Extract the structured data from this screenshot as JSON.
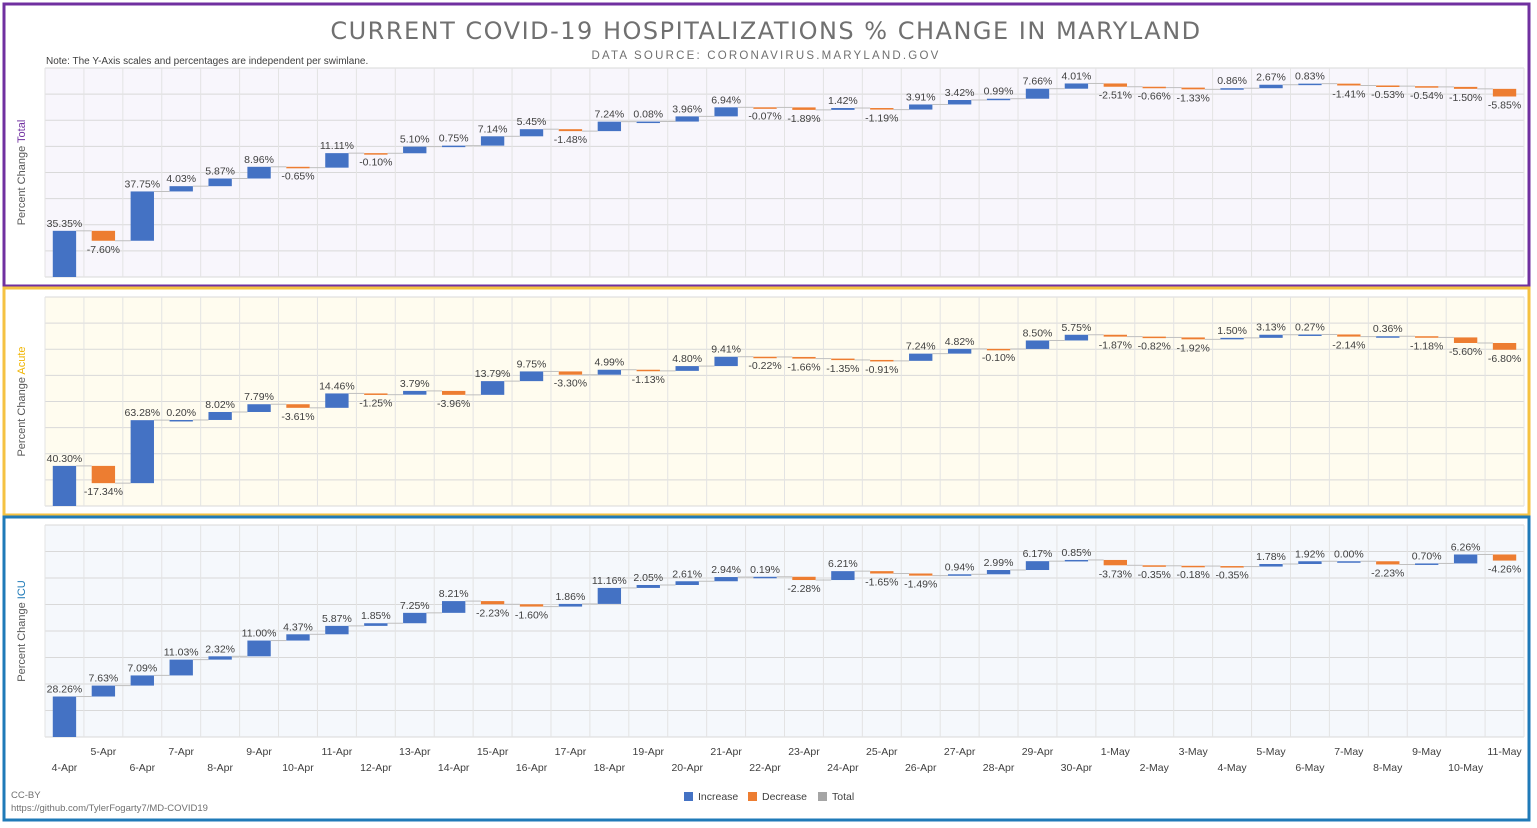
{
  "title": "CURRENT COVID-19 HOSPITALIZATIONS % CHANGE IN MARYLAND",
  "subtitle": "DATA SOURCE: CORONAVIRUS.MARYLAND.GOV",
  "note": "Note: The Y-Axis scales and percentages are independent per swimlane.",
  "footer": {
    "license": "CC-BY",
    "url": "https://github.com/TylerFogarty7/MD-COVID19"
  },
  "legend": [
    {
      "label": "Increase",
      "color": "#4472c4"
    },
    {
      "label": "Decrease",
      "color": "#ed7d31"
    },
    {
      "label": "Total",
      "color": "#a5a5a5"
    }
  ],
  "colors": {
    "increase": "#4472c4",
    "decrease": "#ed7d31",
    "total_lane_border": "#7030a0",
    "acute_lane_border": "#f5c242",
    "icu_lane_border": "#1f7ab8",
    "total_label": "#7030a0",
    "acute_label": "#f0b400",
    "icu_label": "#1f7ab8"
  },
  "chart_data": [
    {
      "type": "waterfall",
      "lane": "total",
      "ylabel_prefix": "Percent Change",
      "ylabel_highlight": "Total",
      "categories": [
        "4-Apr",
        "5-Apr",
        "6-Apr",
        "7-Apr",
        "8-Apr",
        "9-Apr",
        "10-Apr",
        "11-Apr",
        "12-Apr",
        "13-Apr",
        "14-Apr",
        "15-Apr",
        "16-Apr",
        "17-Apr",
        "18-Apr",
        "19-Apr",
        "20-Apr",
        "21-Apr",
        "22-Apr",
        "23-Apr",
        "24-Apr",
        "25-Apr",
        "26-Apr",
        "27-Apr",
        "28-Apr",
        "29-Apr",
        "30-Apr",
        "1-May",
        "2-May",
        "3-May",
        "4-May",
        "5-May",
        "6-May",
        "7-May",
        "8-May",
        "9-May",
        "10-May",
        "11-May"
      ],
      "values": [
        35.35,
        -7.6,
        37.75,
        4.03,
        5.87,
        8.96,
        -0.65,
        11.11,
        -0.1,
        5.1,
        0.75,
        7.14,
        5.45,
        -1.48,
        7.24,
        0.08,
        3.96,
        6.94,
        -0.07,
        -1.89,
        1.42,
        -1.19,
        3.91,
        3.42,
        0.99,
        7.66,
        4.01,
        -2.51,
        -0.66,
        -1.33,
        0.86,
        2.67,
        0.83,
        -1.41,
        -0.53,
        -0.54,
        -1.5,
        -5.85
      ],
      "labels": [
        "35.35%",
        "-7.60%",
        "37.75%",
        "4.03%",
        "5.87%",
        "8.96%",
        "-0.65%",
        "11.11%",
        "-0.10%",
        "5.10%",
        "0.75%",
        "7.14%",
        "5.45%",
        "-1.48%",
        "7.24%",
        "0.08%",
        "3.96%",
        "6.94%",
        "-0.07%",
        "-1.89%",
        "1.42%",
        "-1.19%",
        "3.91%",
        "3.42%",
        "0.99%",
        "7.66%",
        "4.01%",
        "-2.51%",
        "-0.66%",
        "-1.33%",
        "0.86%",
        "2.67%",
        "0.83%",
        "-1.41%",
        "-0.53%",
        "-0.54%",
        "-1.50%",
        "-5.85%"
      ],
      "ylim": [
        0,
        160
      ]
    },
    {
      "type": "waterfall",
      "lane": "acute",
      "ylabel_prefix": "Percent Change",
      "ylabel_highlight": "Acute",
      "categories": [
        "4-Apr",
        "5-Apr",
        "6-Apr",
        "7-Apr",
        "8-Apr",
        "9-Apr",
        "10-Apr",
        "11-Apr",
        "12-Apr",
        "13-Apr",
        "14-Apr",
        "15-Apr",
        "16-Apr",
        "17-Apr",
        "18-Apr",
        "19-Apr",
        "20-Apr",
        "21-Apr",
        "22-Apr",
        "23-Apr",
        "24-Apr",
        "25-Apr",
        "26-Apr",
        "27-Apr",
        "28-Apr",
        "29-Apr",
        "30-Apr",
        "1-May",
        "2-May",
        "3-May",
        "4-May",
        "5-May",
        "6-May",
        "7-May",
        "8-May",
        "9-May",
        "10-May",
        "11-May"
      ],
      "values": [
        40.3,
        -17.34,
        63.28,
        0.2,
        8.02,
        7.79,
        -3.61,
        14.46,
        -1.25,
        3.79,
        -3.96,
        13.79,
        9.75,
        -3.3,
        4.99,
        -1.13,
        4.8,
        9.41,
        -0.22,
        -1.66,
        -1.35,
        -0.91,
        7.24,
        4.82,
        -0.1,
        8.5,
        5.75,
        -1.87,
        -0.82,
        -1.92,
        1.5,
        3.13,
        0.27,
        -2.14,
        0.36,
        -1.18,
        -5.6,
        -6.8
      ],
      "labels": [
        "40.30%",
        "-17.34%",
        "63.28%",
        "0.20%",
        "8.02%",
        "7.79%",
        "-3.61%",
        "14.46%",
        "-1.25%",
        "3.79%",
        "-3.96%",
        "13.79%",
        "9.75%",
        "-3.30%",
        "4.99%",
        "-1.13%",
        "4.80%",
        "9.41%",
        "-0.22%",
        "-1.66%",
        "-1.35%",
        "-0.91%",
        "7.24%",
        "4.82%",
        "-0.10%",
        "8.50%",
        "5.75%",
        "-1.87%",
        "-0.82%",
        "-1.92%",
        "1.50%",
        "3.13%",
        "0.27%",
        "-2.14%",
        "0.36%",
        "-1.18%",
        "-5.60%",
        "-6.80%"
      ],
      "ylim": [
        0,
        210
      ]
    },
    {
      "type": "waterfall",
      "lane": "icu",
      "ylabel_prefix": "Percent Change",
      "ylabel_highlight": "ICU",
      "categories": [
        "4-Apr",
        "5-Apr",
        "6-Apr",
        "7-Apr",
        "8-Apr",
        "9-Apr",
        "10-Apr",
        "11-Apr",
        "12-Apr",
        "13-Apr",
        "14-Apr",
        "15-Apr",
        "16-Apr",
        "17-Apr",
        "18-Apr",
        "19-Apr",
        "20-Apr",
        "21-Apr",
        "22-Apr",
        "23-Apr",
        "24-Apr",
        "25-Apr",
        "26-Apr",
        "27-Apr",
        "28-Apr",
        "29-Apr",
        "30-Apr",
        "1-May",
        "2-May",
        "3-May",
        "4-May",
        "5-May",
        "6-May",
        "7-May",
        "8-May",
        "9-May",
        "10-May",
        "11-May"
      ],
      "values": [
        28.26,
        7.63,
        7.09,
        11.03,
        2.32,
        11.0,
        4.37,
        5.87,
        1.85,
        7.25,
        8.21,
        -2.23,
        -1.6,
        1.86,
        11.16,
        2.05,
        2.61,
        2.94,
        0.19,
        -2.28,
        6.21,
        -1.65,
        -1.49,
        0.94,
        2.99,
        6.17,
        0.85,
        -3.73,
        -0.35,
        -0.18,
        -0.35,
        1.78,
        1.92,
        0.0,
        -2.23,
        0.7,
        6.26,
        -4.26
      ],
      "labels": [
        "28.26%",
        "7.63%",
        "7.09%",
        "11.03%",
        "2.32%",
        "11.00%",
        "4.37%",
        "5.87%",
        "1.85%",
        "7.25%",
        "8.21%",
        "-2.23%",
        "-1.60%",
        "1.86%",
        "11.16%",
        "2.05%",
        "2.61%",
        "2.94%",
        "0.19%",
        "-2.28%",
        "6.21%",
        "-1.65%",
        "-1.49%",
        "0.94%",
        "2.99%",
        "6.17%",
        "0.85%",
        "-3.73%",
        "-0.35%",
        "-0.18%",
        "-0.35%",
        "1.78%",
        "1.92%",
        "0.00%",
        "-2.23%",
        "0.70%",
        "6.26%",
        "-4.26%"
      ],
      "ylim": [
        0,
        148
      ]
    }
  ]
}
